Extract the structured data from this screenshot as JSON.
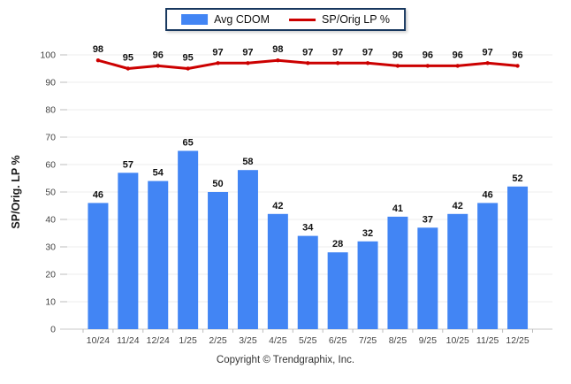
{
  "chart_data": {
    "type": "bar",
    "categories": [
      "10/24",
      "11/24",
      "12/24",
      "1/25",
      "2/25",
      "3/25",
      "4/25",
      "5/25",
      "6/25",
      "7/25",
      "8/25",
      "9/25",
      "10/25",
      "11/25",
      "12/25"
    ],
    "series": [
      {
        "name": "Avg CDOM",
        "type": "bar",
        "color": "#4285f4",
        "values": [
          46,
          57,
          54,
          65,
          50,
          58,
          42,
          34,
          28,
          32,
          41,
          37,
          42,
          46,
          52
        ]
      },
      {
        "name": "SP/Orig LP %",
        "type": "line",
        "color": "#cc0000",
        "values": [
          98,
          95,
          96,
          95,
          97,
          97,
          98,
          97,
          97,
          97,
          96,
          96,
          96,
          97,
          96
        ]
      }
    ],
    "title": "",
    "xlabel": "",
    "ylabel": "SP/Orig. LP %",
    "ylim": [
      0,
      100
    ],
    "y_ticks": [
      0,
      10,
      20,
      30,
      40,
      50,
      60,
      70,
      80,
      90,
      100
    ],
    "grid": true,
    "legend_position": "top",
    "data_labels": true
  },
  "legend": {
    "items": [
      {
        "label": "Avg CDOM",
        "swatch": "bar-swatch"
      },
      {
        "label": "SP/Orig LP %",
        "swatch": "line-swatch"
      }
    ]
  },
  "footer": {
    "copyright": "Copyright © Trendgraphix, Inc."
  },
  "colors": {
    "bar": "#4285f4",
    "line": "#cc0000",
    "legend_border": "#17375e",
    "grid": "#ececec",
    "axis": "#c9c9c9",
    "tick": "#bdbdbd",
    "value_label": "#111111",
    "tick_label": "#444444",
    "axis_title": "#1a1a1a"
  }
}
